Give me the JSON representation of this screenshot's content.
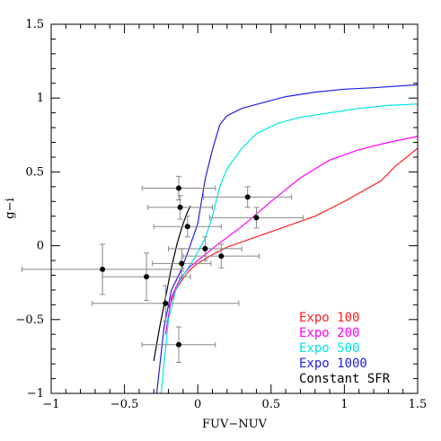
{
  "chart_data": {
    "type": "line",
    "xlabel": "FUV−NUV",
    "ylabel": "g−i",
    "xlim": [
      -1,
      1.5
    ],
    "ylim": [
      -1,
      1.5
    ],
    "x_ticks": [
      "−1",
      "−0.5",
      "0",
      "0.5",
      "1",
      "1.5"
    ],
    "y_ticks": [
      "−1",
      "−0.5",
      "0",
      "0.5",
      "1",
      "1.5"
    ],
    "legend_position": "bottom-right",
    "series": [
      {
        "name": "Expo 100",
        "color": "#ff2020",
        "points": [
          [
            -0.2,
            -0.42
          ],
          [
            -0.15,
            -0.3
          ],
          [
            -0.1,
            -0.22
          ],
          [
            -0.05,
            -0.16
          ],
          [
            0.0,
            -0.12
          ],
          [
            0.1,
            -0.06
          ],
          [
            0.2,
            -0.01
          ],
          [
            0.4,
            0.06
          ],
          [
            0.6,
            0.13
          ],
          [
            0.8,
            0.2
          ],
          [
            1.0,
            0.3
          ],
          [
            1.25,
            0.44
          ],
          [
            1.35,
            0.54
          ],
          [
            1.5,
            0.66
          ]
        ]
      },
      {
        "name": "Expo 200",
        "color": "#ff00ff",
        "points": [
          [
            -0.22,
            -0.6
          ],
          [
            -0.18,
            -0.35
          ],
          [
            -0.12,
            -0.22
          ],
          [
            -0.05,
            -0.14
          ],
          [
            0.05,
            -0.06
          ],
          [
            0.15,
            0.02
          ],
          [
            0.3,
            0.13
          ],
          [
            0.5,
            0.3
          ],
          [
            0.7,
            0.46
          ],
          [
            0.9,
            0.58
          ],
          [
            1.1,
            0.65
          ],
          [
            1.3,
            0.7
          ],
          [
            1.5,
            0.74
          ]
        ]
      },
      {
        "name": "Expo 500",
        "color": "#00e5e5",
        "points": [
          [
            -0.25,
            -1.0
          ],
          [
            -0.2,
            -0.5
          ],
          [
            -0.15,
            -0.3
          ],
          [
            -0.1,
            -0.2
          ],
          [
            -0.02,
            -0.08
          ],
          [
            0.05,
            0.05
          ],
          [
            0.1,
            0.2
          ],
          [
            0.15,
            0.4
          ],
          [
            0.2,
            0.52
          ],
          [
            0.3,
            0.66
          ],
          [
            0.4,
            0.76
          ],
          [
            0.55,
            0.83
          ],
          [
            0.7,
            0.87
          ],
          [
            0.9,
            0.9
          ],
          [
            1.1,
            0.93
          ],
          [
            1.3,
            0.95
          ],
          [
            1.5,
            0.96
          ]
        ]
      },
      {
        "name": "Expo 1000",
        "color": "#2020e0",
        "points": [
          [
            -0.28,
            -1.0
          ],
          [
            -0.23,
            -0.55
          ],
          [
            -0.18,
            -0.3
          ],
          [
            -0.12,
            -0.18
          ],
          [
            -0.07,
            -0.05
          ],
          [
            0.0,
            0.15
          ],
          [
            0.05,
            0.45
          ],
          [
            0.1,
            0.65
          ],
          [
            0.15,
            0.82
          ],
          [
            0.2,
            0.88
          ],
          [
            0.3,
            0.93
          ],
          [
            0.45,
            0.97
          ],
          [
            0.6,
            1.01
          ],
          [
            0.8,
            1.04
          ],
          [
            1.0,
            1.06
          ],
          [
            1.2,
            1.07
          ],
          [
            1.5,
            1.09
          ]
        ]
      },
      {
        "name": "Constant SFR",
        "color": "#000000",
        "points": [
          [
            -0.3,
            -0.78
          ],
          [
            -0.26,
            -0.55
          ],
          [
            -0.22,
            -0.35
          ],
          [
            -0.18,
            -0.15
          ],
          [
            -0.14,
            0.02
          ],
          [
            -0.1,
            0.15
          ],
          [
            -0.07,
            0.23
          ],
          [
            -0.05,
            0.27
          ]
        ]
      }
    ],
    "data_points": [
      {
        "x": -0.65,
        "y": -0.16,
        "xerr": 0.55,
        "yerr": 0.17
      },
      {
        "x": -0.35,
        "y": -0.21,
        "xerr": 0.3,
        "yerr": 0.16
      },
      {
        "x": -0.22,
        "y": -0.39,
        "xerr": 0.5,
        "yerr": 0.12
      },
      {
        "x": -0.13,
        "y": -0.67,
        "xerr": 0.25,
        "yerr": 0.12
      },
      {
        "x": -0.11,
        "y": -0.12,
        "xerr": 0.2,
        "yerr": 0.1
      },
      {
        "x": -0.13,
        "y": 0.39,
        "xerr": 0.25,
        "yerr": 0.08
      },
      {
        "x": -0.12,
        "y": 0.26,
        "xerr": 0.22,
        "yerr": 0.08
      },
      {
        "x": -0.07,
        "y": 0.13,
        "xerr": 0.23,
        "yerr": 0.07
      },
      {
        "x": 0.05,
        "y": -0.02,
        "xerr": 0.25,
        "yerr": 0.08
      },
      {
        "x": 0.16,
        "y": -0.07,
        "xerr": 0.26,
        "yerr": 0.08
      },
      {
        "x": 0.34,
        "y": 0.33,
        "xerr": 0.3,
        "yerr": 0.07
      },
      {
        "x": 0.4,
        "y": 0.19,
        "xerr": 0.32,
        "yerr": 0.07
      }
    ]
  }
}
